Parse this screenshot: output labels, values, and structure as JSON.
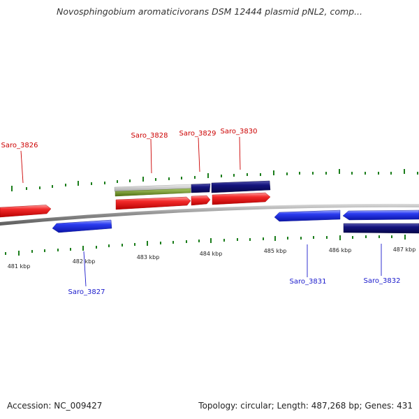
{
  "title": "Novosphingobium aromaticivorans DSM 12444 plasmid pNL2, comp...",
  "footer": {
    "accession": "Accession: NC_009427",
    "topology": "Topology: circular; Length: 487,268 bp; Genes: 431"
  },
  "colors": {
    "forward_cds": "#ee1111",
    "reverse_cds": "#1a2ee6",
    "dark_feature": "#10107a",
    "gray_feature": "#c4c4c4",
    "green_feature": "#6b8f22",
    "tick": "#1b7d1b",
    "forward_label": "#cc0000",
    "reverse_label": "#1a1acc",
    "backbone": "#8a8a8a"
  },
  "scale_labels": [
    "481 kbp",
    "482 kbp",
    "483 kbp",
    "484 kbp",
    "485 kbp",
    "486 kbp",
    "487 kbp"
  ],
  "genes": [
    {
      "name": "Saro_3826",
      "strand": "forward"
    },
    {
      "name": "Saro_3827",
      "strand": "reverse"
    },
    {
      "name": "Saro_3828",
      "strand": "forward"
    },
    {
      "name": "Saro_3829",
      "strand": "forward"
    },
    {
      "name": "Saro_3830",
      "strand": "forward"
    },
    {
      "name": "Saro_3831",
      "strand": "reverse"
    },
    {
      "name": "Saro_3832",
      "strand": "reverse"
    }
  ]
}
